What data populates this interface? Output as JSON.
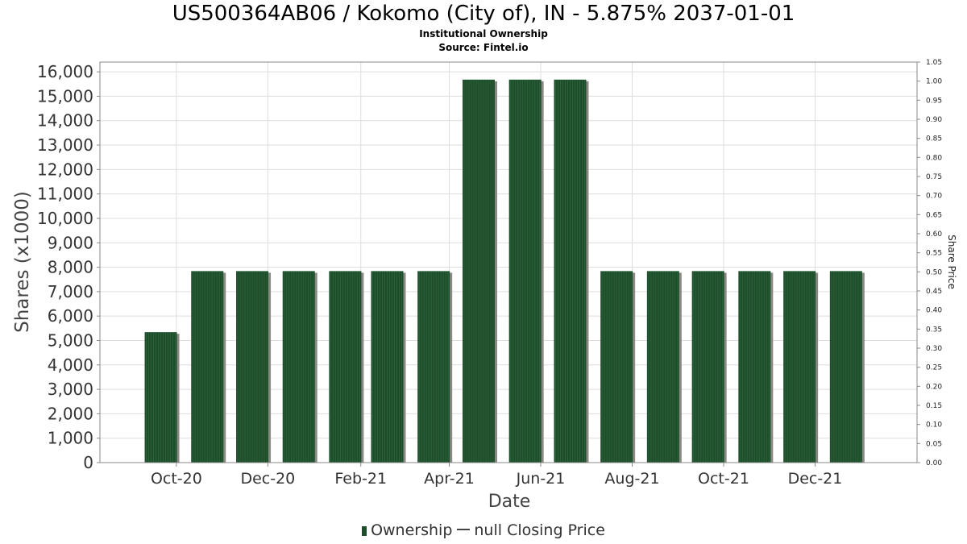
{
  "title": "US500364AB06 / Kokomo (City of), IN - 5.875% 2037-01-01",
  "subtitle": "Institutional Ownership",
  "source": "Source: Fintel.io",
  "legend": {
    "ownership": "Ownership",
    "closing_price": "null Closing Price"
  },
  "colors": {
    "bar": "#1e4d2b",
    "bar_stripe": "#2f6b3d",
    "bar_shadow": "#8a8a85",
    "grid": "#dddddd",
    "axis": "#888888"
  },
  "chart_data": {
    "type": "bar",
    "title": "US500364AB06 / Kokomo (City of), IN - 5.875% 2037-01-01",
    "xlabel": "Date",
    "ylabel": "Shares (x1000)",
    "y2label": "Share Price",
    "x_ticks": [
      "Oct-20",
      "Dec-20",
      "Feb-21",
      "Apr-21",
      "Jun-21",
      "Aug-21",
      "Oct-21",
      "Dec-21"
    ],
    "y_ticks": [
      "0",
      "1,000",
      "2,000",
      "3,000",
      "4,000",
      "5,000",
      "6,000",
      "7,000",
      "8,000",
      "9,000",
      "10,000",
      "11,000",
      "12,000",
      "13,000",
      "14,000",
      "15,000",
      "16,000"
    ],
    "y2_ticks": [
      "0.00",
      "0.05",
      "0.10",
      "0.15",
      "0.20",
      "0.25",
      "0.30",
      "0.35",
      "0.40",
      "0.45",
      "0.50",
      "0.55",
      "0.60",
      "0.65",
      "0.70",
      "0.75",
      "0.80",
      "0.85",
      "0.90",
      "0.95",
      "1.00",
      "1.05"
    ],
    "ylim": [
      0,
      16400
    ],
    "y2lim": [
      0,
      1.05
    ],
    "grid": true,
    "legend_position": "bottom",
    "series": [
      {
        "name": "Ownership",
        "x": [
          "2020-10-10",
          "2020-11-10",
          "2020-12-10",
          "2021-01-10",
          "2021-02-10",
          "2021-03-10",
          "2021-04-10",
          "2021-05-10",
          "2021-06-10",
          "2021-07-10",
          "2021-08-10",
          "2021-09-10",
          "2021-10-10",
          "2021-11-10",
          "2021-12-10",
          "2022-01-10"
        ],
        "values": [
          5340,
          7840,
          7840,
          7840,
          7840,
          7840,
          7840,
          15680,
          15680,
          15680,
          7840,
          7840,
          7840,
          7840,
          7840,
          7840
        ]
      }
    ]
  }
}
